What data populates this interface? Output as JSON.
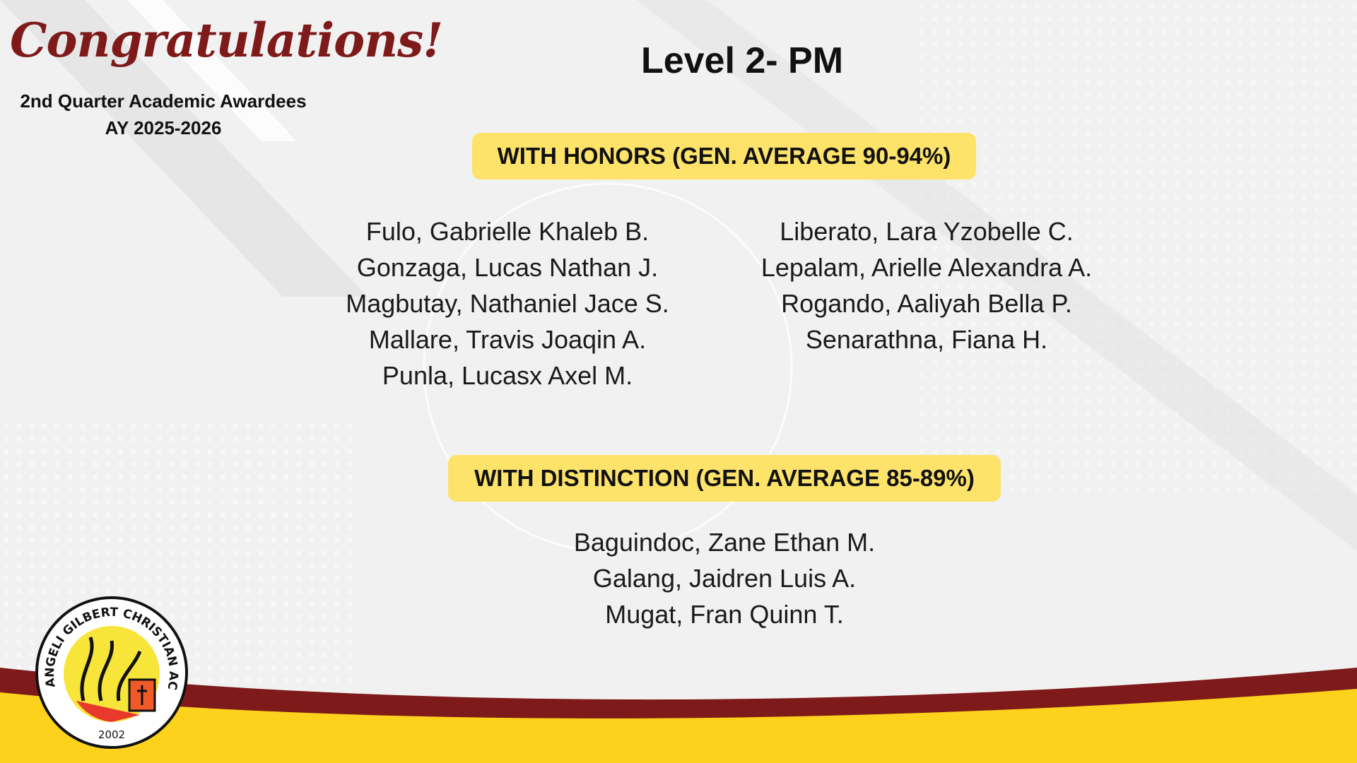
{
  "header": {
    "congrats": "Congratulations!",
    "subtitle": "2nd Quarter Academic Awardees",
    "year": "AY 2025-2026",
    "level": "Level 2- PM"
  },
  "honors": {
    "label": "WITH HONORS (GEN. AVERAGE 90-94%)",
    "left": [
      "Fulo, Gabrielle Khaleb B.",
      "Gonzaga, Lucas Nathan J.",
      "Magbutay, Nathaniel Jace S.",
      "Mallare, Travis Joaqin A.",
      "Punla, Lucasx Axel M."
    ],
    "right": [
      "Liberato, Lara  Yzobelle C.",
      "Lepalam, Arielle Alexandra A.",
      "Rogando, Aaliyah Bella P.",
      "Senarathna, Fiana H."
    ]
  },
  "distinction": {
    "label": "WITH DISTINCTION (GEN. AVERAGE 85-89%)",
    "names": [
      "Baguindoc, Zane Ethan M.",
      "Galang, Jaidren Luis A.",
      "Mugat, Fran Quinn T."
    ]
  },
  "logo": {
    "name": "ANGELI GILBERT CHRISTIAN ACADEMY",
    "year": "2002"
  },
  "colors": {
    "maroon": "#7e1a1a",
    "yellow": "#fcd21c",
    "badge": "#fde36a"
  }
}
